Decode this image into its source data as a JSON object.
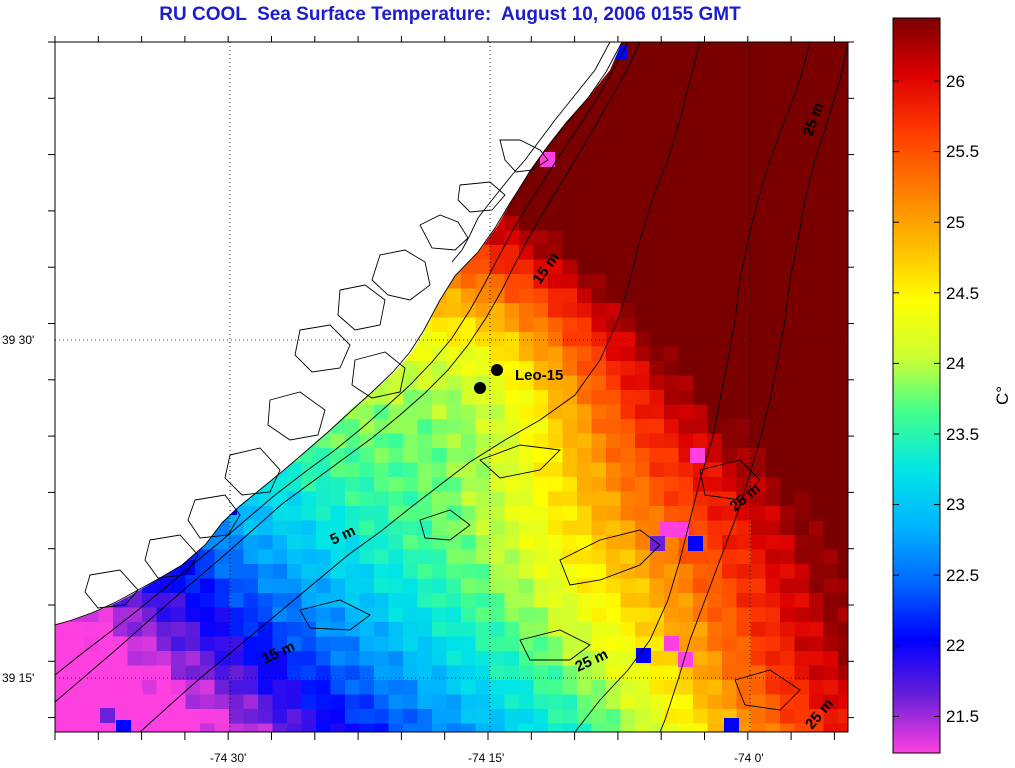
{
  "title": "RU COOL  Sea Surface Temperature:  August 10, 2006 0155 GMT",
  "map": {
    "lat_labels": [
      "39 30'",
      "39 15'"
    ],
    "lon_labels": [
      "-74 30'",
      "-74 15'",
      "-74 0'"
    ],
    "contour_labels": [
      "25 m",
      "15 m",
      "5 m",
      "25 m",
      "15 m",
      "25 m",
      "25 m"
    ],
    "station_label": "Leo-15"
  },
  "colorbar": {
    "unit": "C°",
    "ticks": [
      "26",
      "25.5",
      "25",
      "24.5",
      "24",
      "23.5",
      "23",
      "22.5",
      "22",
      "21.5"
    ],
    "range": [
      21.3,
      26.4
    ],
    "stops": [
      "#ff40e0",
      "#6a1fd8",
      "#0000ff",
      "#0066ff",
      "#00b4ff",
      "#00e6e6",
      "#40ff90",
      "#ccff33",
      "#ffff00",
      "#ffbb00",
      "#ff7a00",
      "#ff3a00",
      "#dd0000",
      "#7a0000"
    ]
  }
}
